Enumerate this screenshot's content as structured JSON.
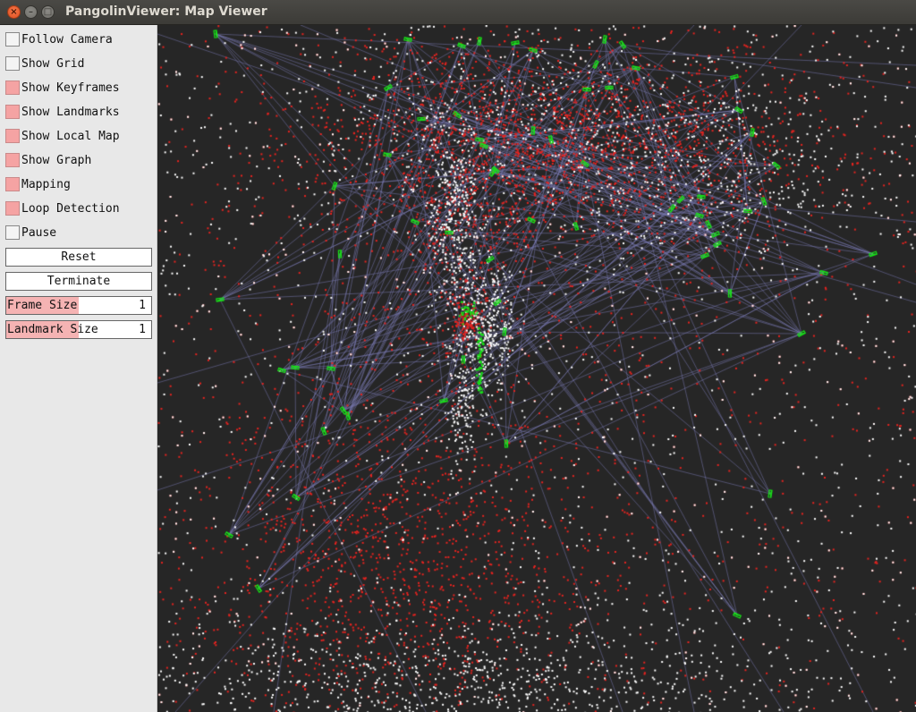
{
  "window": {
    "title": "PangolinViewer: Map Viewer",
    "close_glyph": "×",
    "min_glyph": "–",
    "max_glyph": "□"
  },
  "panel": {
    "checkboxes": [
      {
        "label": "Follow Camera",
        "checked": false
      },
      {
        "label": "Show Grid",
        "checked": false
      },
      {
        "label": "Show Keyframes",
        "checked": true
      },
      {
        "label": "Show Landmarks",
        "checked": true
      },
      {
        "label": "Show Local Map",
        "checked": true
      },
      {
        "label": "Show Graph",
        "checked": true
      },
      {
        "label": "Mapping",
        "checked": true
      },
      {
        "label": "Loop Detection",
        "checked": true
      },
      {
        "label": "Pause",
        "checked": false
      }
    ],
    "buttons": {
      "reset": "Reset",
      "terminate": "Terminate"
    },
    "sliders": {
      "frame_size": {
        "label": "Frame Size",
        "value": "1",
        "fraction": 0.5
      },
      "landmark_size": {
        "label": "Landmark Size",
        "value": "1",
        "fraction": 0.5
      }
    }
  },
  "map_view": {
    "colors": {
      "background": "#262626",
      "landmark_local": "#e8231f",
      "landmark_global": "#ffffff",
      "keyframe": "#18e018",
      "graph_edge": "#7a7ab4"
    },
    "icons": {
      "checkbox": "checkbox-icon",
      "keyframe": "camera-frustum-icon"
    }
  }
}
